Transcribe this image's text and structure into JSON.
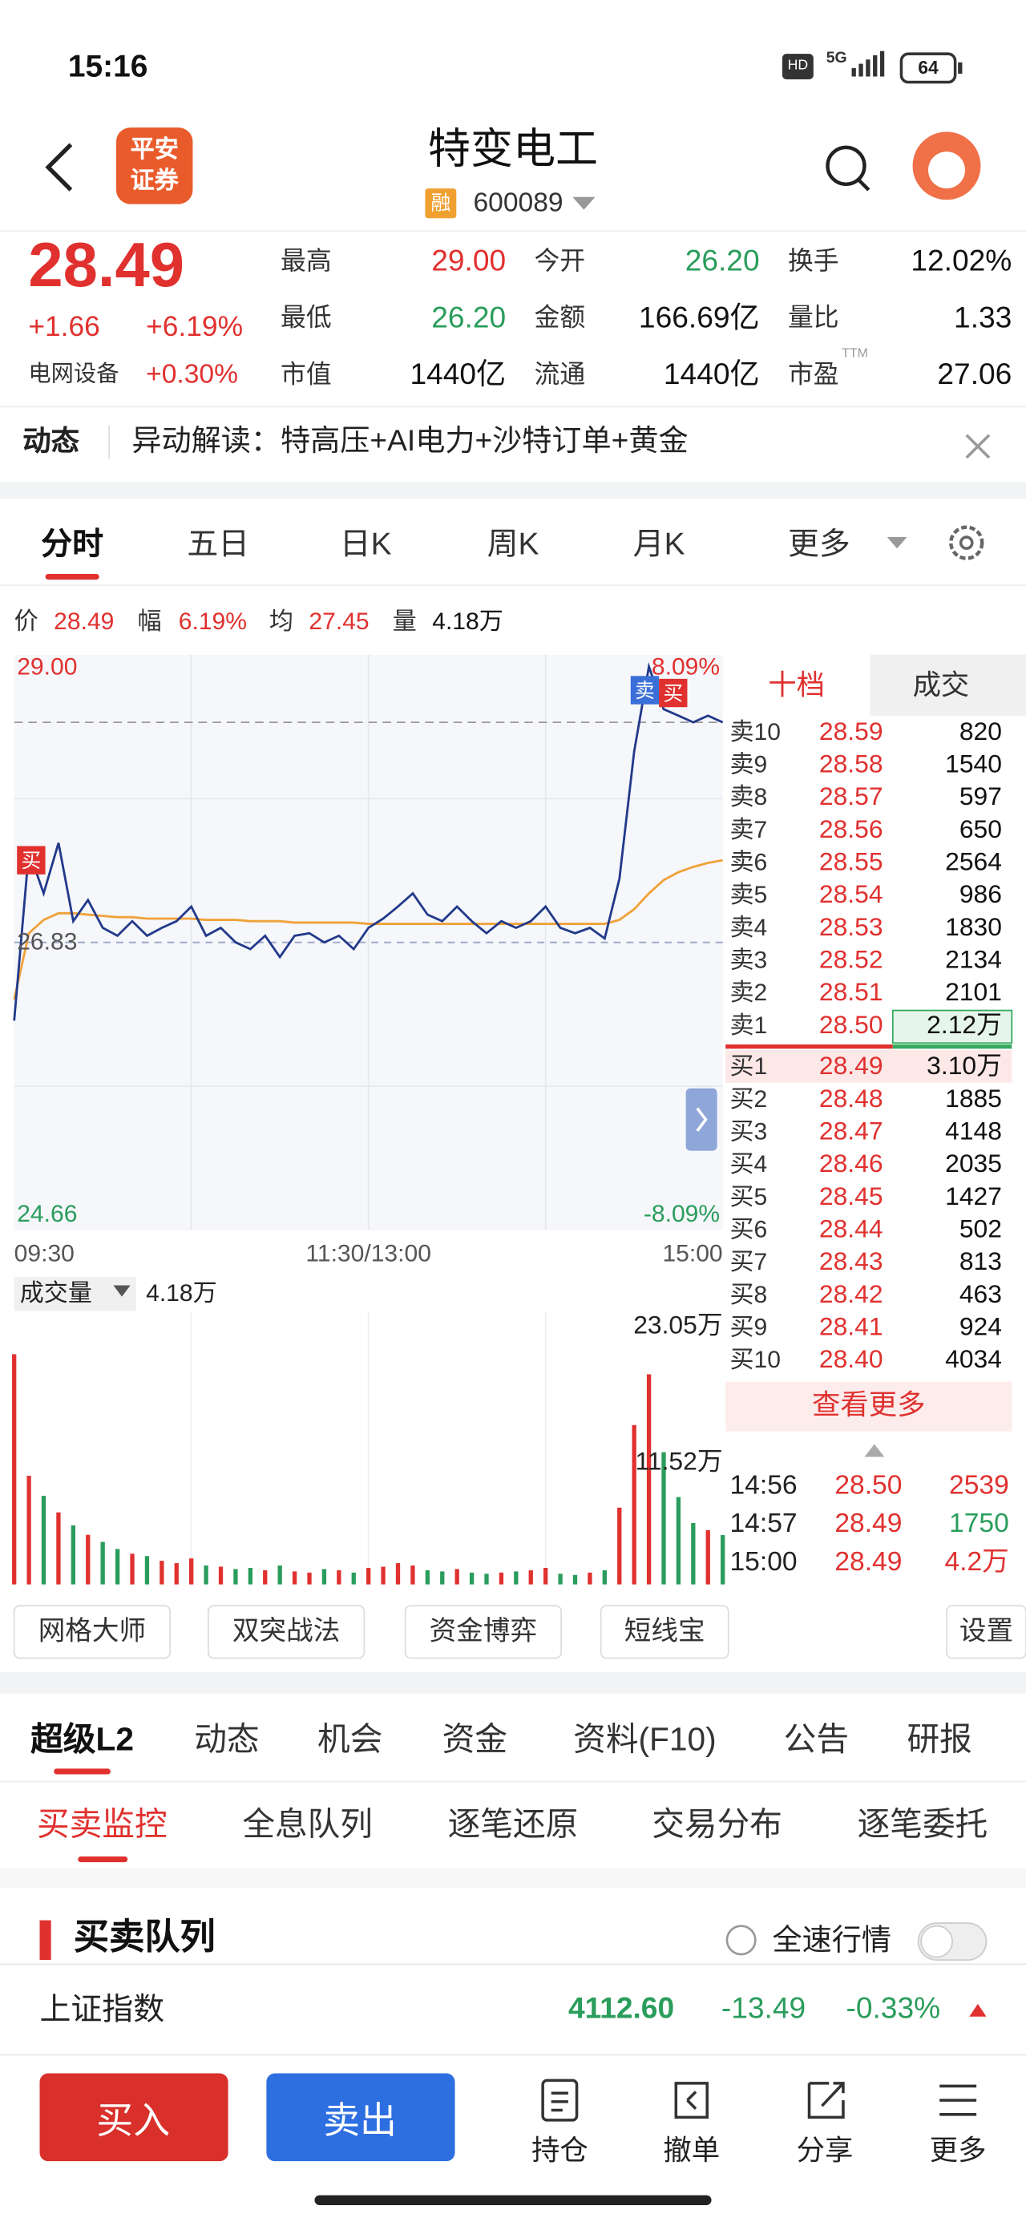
{
  "status": {
    "time": "15:16",
    "hd": "HD",
    "network": "5G",
    "battery": "64"
  },
  "header": {
    "logo": [
      "平安",
      "证券"
    ],
    "title": "特变电工",
    "tag": "融",
    "code": "600089"
  },
  "quote": {
    "price": "28.49",
    "change": "+1.66",
    "change_pct": "+6.19%",
    "sector": "电网设备",
    "sector_pct": "+0.30%",
    "pe_note": "TTM",
    "stats": [
      {
        "label": "最高",
        "value": "29.00",
        "color": "#e0312f"
      },
      {
        "label": "今开",
        "value": "26.20",
        "color": "#2a9d5c"
      },
      {
        "label": "换手",
        "value": "12.02%",
        "color": "#111111"
      },
      {
        "label": "最低",
        "value": "26.20",
        "color": "#2a9d5c"
      },
      {
        "label": "金额",
        "value": "166.69亿",
        "color": "#111111"
      },
      {
        "label": "量比",
        "value": "1.33",
        "color": "#111111"
      },
      {
        "label": "市值",
        "value": "1440亿",
        "color": "#111111"
      },
      {
        "label": "流通",
        "value": "1440亿",
        "color": "#111111"
      },
      {
        "label": "市盈",
        "value": "27.06",
        "color": "#111111"
      }
    ]
  },
  "news": {
    "label": "动态",
    "text": "异动解读：特高压+AI电力+沙特订单+黄金"
  },
  "tabs": [
    "分时",
    "五日",
    "日K",
    "周K",
    "月K",
    "更多"
  ],
  "chart": {
    "info": [
      {
        "label": "价",
        "value": "28.49",
        "color": "#e0312f"
      },
      {
        "label": "幅",
        "value": "6.19%",
        "color": "#e0312f"
      },
      {
        "label": "均",
        "value": "27.45",
        "color": "#e0312f"
      },
      {
        "label": "量",
        "value": "4.18万",
        "color": "#111111"
      }
    ],
    "price_chart": {
      "type": "line",
      "ylim": [
        24.66,
        29.0
      ],
      "yticks": [
        {
          "value": 29.0,
          "label": "29.00"
        },
        {
          "value": 26.83,
          "label": "26.83"
        },
        {
          "value": 24.66,
          "label": "24.66"
        }
      ],
      "y2lim": [
        -8.09,
        8.09
      ],
      "y2ticks": [
        {
          "value": 8.09,
          "label": "8.09%"
        },
        {
          "value": -8.09,
          "label": "-8.09%"
        }
      ],
      "x_labels": [
        "09:30",
        "11:30/13:00",
        "15:00"
      ],
      "markers": [
        "买",
        "卖",
        "买"
      ],
      "up_color": "#e0312f",
      "down_color": "#2a9d5c",
      "series": [
        {
          "color": "#223a8a",
          "values": [
            26.24,
            27.52,
            27.2,
            27.58,
            26.99,
            27.15,
            26.94,
            26.88,
            26.99,
            26.88,
            26.94,
            26.99,
            27.1,
            26.88,
            26.94,
            26.83,
            26.78,
            26.88,
            26.72,
            26.88,
            26.9,
            26.83,
            26.88,
            26.78,
            26.94,
            27.01,
            27.1,
            27.2,
            27.04,
            26.99,
            27.1,
            26.99,
            26.9,
            26.99,
            26.94,
            26.99,
            27.1,
            26.94,
            26.9,
            26.94,
            26.86,
            27.31,
            28.27,
            28.91,
            28.59,
            28.54,
            28.49,
            28.54,
            28.49
          ]
        },
        {
          "color": "#f0a23a",
          "values": [
            26.4,
            26.9,
            27.0,
            27.05,
            27.05,
            27.04,
            27.03,
            27.02,
            27.02,
            27.01,
            27.01,
            27.01,
            27.01,
            27.0,
            27.0,
            27.0,
            26.99,
            26.99,
            26.99,
            26.98,
            26.98,
            26.98,
            26.98,
            26.98,
            26.97,
            26.97,
            26.97,
            26.97,
            26.97,
            26.97,
            26.97,
            26.97,
            26.97,
            26.97,
            26.97,
            26.97,
            26.97,
            26.97,
            26.97,
            26.97,
            26.97,
            27.0,
            27.08,
            27.2,
            27.3,
            27.36,
            27.4,
            27.43,
            27.45
          ]
        }
      ]
    },
    "volume_chart": {
      "type": "bar",
      "label": "成交量",
      "current": "4.18万",
      "ylim": [
        0,
        23.05
      ],
      "yticks": [
        {
          "value": 23.05,
          "label": "23.05万"
        },
        {
          "value": 11.52,
          "label": "11.52万"
        }
      ],
      "values": [
        19.5,
        9.2,
        7.5,
        6.1,
        5.0,
        4.2,
        3.6,
        3.0,
        2.6,
        2.4,
        2.0,
        1.8,
        2.2,
        1.6,
        1.5,
        1.3,
        1.4,
        1.2,
        1.6,
        1.1,
        1.0,
        1.3,
        1.2,
        1.0,
        1.4,
        1.5,
        1.8,
        1.6,
        1.2,
        1.1,
        1.3,
        1.0,
        0.9,
        1.0,
        1.1,
        1.2,
        1.4,
        0.9,
        0.8,
        1.0,
        1.2,
        6.5,
        13.5,
        17.8,
        11.2,
        7.4,
        5.2,
        4.6,
        4.18
      ]
    }
  },
  "order_book": {
    "tabs": [
      "十档",
      "成交"
    ],
    "asks": [
      {
        "label": "卖10",
        "price": "28.59",
        "volume": "820"
      },
      {
        "label": "卖9",
        "price": "28.58",
        "volume": "1540"
      },
      {
        "label": "卖8",
        "price": "28.57",
        "volume": "597"
      },
      {
        "label": "卖7",
        "price": "28.56",
        "volume": "650"
      },
      {
        "label": "卖6",
        "price": "28.55",
        "volume": "2564"
      },
      {
        "label": "卖5",
        "price": "28.54",
        "volume": "986"
      },
      {
        "label": "卖4",
        "price": "28.53",
        "volume": "1830"
      },
      {
        "label": "卖3",
        "price": "28.52",
        "volume": "2134"
      },
      {
        "label": "卖2",
        "price": "28.51",
        "volume": "2101"
      },
      {
        "label": "卖1",
        "price": "28.50",
        "volume": "2.12万"
      }
    ],
    "bids": [
      {
        "label": "买1",
        "price": "28.49",
        "volume": "3.10万"
      },
      {
        "label": "买2",
        "price": "28.48",
        "volume": "1885"
      },
      {
        "label": "买3",
        "price": "28.47",
        "volume": "4148"
      },
      {
        "label": "买4",
        "price": "28.46",
        "volume": "2035"
      },
      {
        "label": "买5",
        "price": "28.45",
        "volume": "1427"
      },
      {
        "label": "买6",
        "price": "28.44",
        "volume": "502"
      },
      {
        "label": "买7",
        "price": "28.43",
        "volume": "813"
      },
      {
        "label": "买8",
        "price": "28.42",
        "volume": "463"
      },
      {
        "label": "买9",
        "price": "28.41",
        "volume": "924"
      },
      {
        "label": "买10",
        "price": "28.40",
        "volume": "4034"
      }
    ],
    "more": "查看更多",
    "trades": [
      {
        "time": "14:56",
        "price": "28.50",
        "volume": "2539",
        "color": "#e0312f"
      },
      {
        "time": "14:57",
        "price": "28.49",
        "volume": "1750",
        "color": "#2a9d5c"
      },
      {
        "time": "15:00",
        "price": "28.49",
        "volume": "4.2万",
        "color": "#e0312f"
      }
    ]
  },
  "tools": [
    "网格大师",
    "双突战法",
    "资金博弈",
    "短线宝"
  ],
  "tools_settings": "设置",
  "section_tabs": [
    "超级L2",
    "动态",
    "机会",
    "资金",
    "资料(F10)",
    "公告",
    "研报"
  ],
  "sub_tabs": [
    "买卖监控",
    "全息队列",
    "逐笔还原",
    "交易分布",
    "逐笔委托"
  ],
  "queue": {
    "title": "买卖队列",
    "fast": "全速行情"
  },
  "index": {
    "name": "上证指数",
    "value": "4112.60",
    "change": "-13.49",
    "pct": "-0.33%"
  },
  "bottom": {
    "buy": "买入",
    "sell": "卖出",
    "actions": [
      "持仓",
      "撤单",
      "分享",
      "更多"
    ]
  }
}
